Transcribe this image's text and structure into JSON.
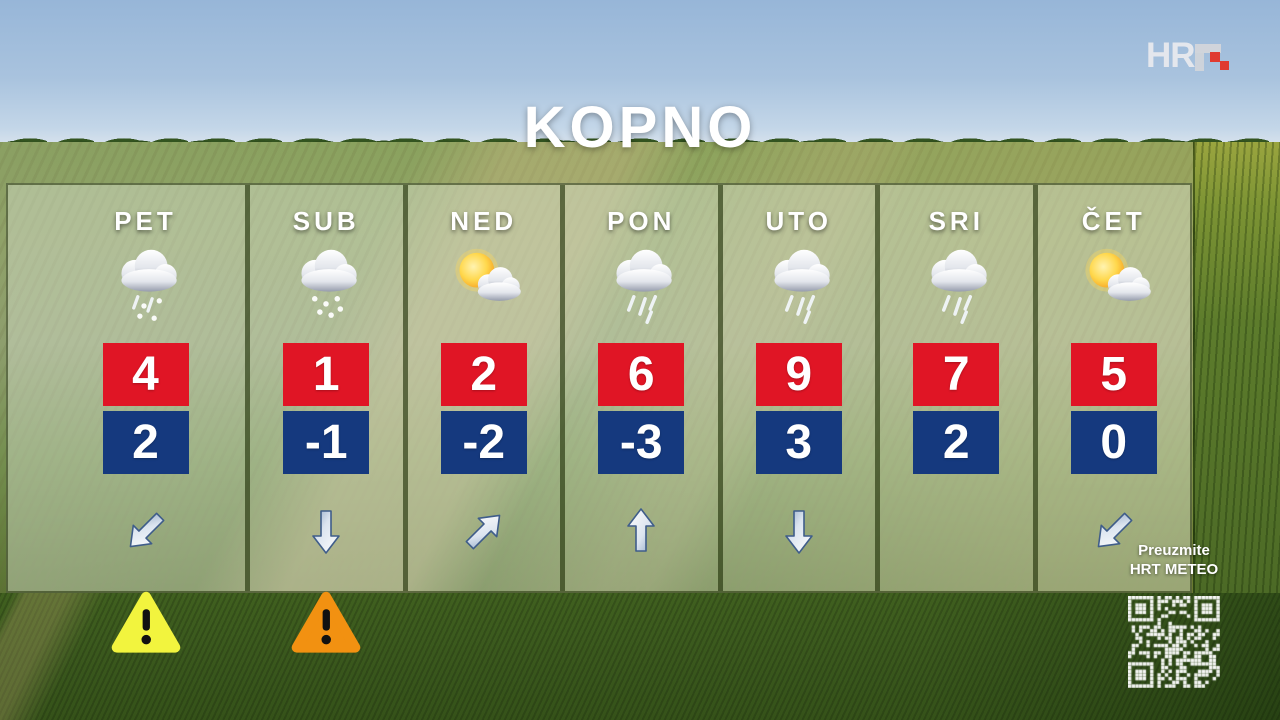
{
  "title": "KOPNO",
  "logo": {
    "text": "HR"
  },
  "days": [
    {
      "label": "PET",
      "icon": "sleet-cloud-icon",
      "high": "4",
      "low": "2",
      "wind": "down-left",
      "warning": "yellow"
    },
    {
      "label": "SUB",
      "icon": "snow-cloud-icon",
      "high": "1",
      "low": "-1",
      "wind": "down",
      "warning": "orange"
    },
    {
      "label": "NED",
      "icon": "sun-cloud-icon",
      "high": "2",
      "low": "-2",
      "wind": "up-right",
      "warning": null
    },
    {
      "label": "PON",
      "icon": "rain-cloud-icon",
      "high": "6",
      "low": "-3",
      "wind": "up",
      "warning": null
    },
    {
      "label": "UTO",
      "icon": "rain-cloud-icon",
      "high": "9",
      "low": "3",
      "wind": "down",
      "warning": null
    },
    {
      "label": "SRI",
      "icon": "rain-cloud-icon",
      "high": "7",
      "low": "2",
      "wind": null,
      "warning": null
    },
    {
      "label": "ČET",
      "icon": "sun-cloud-icon",
      "high": "5",
      "low": "0",
      "wind": "down-left",
      "warning": null
    }
  ],
  "promo": {
    "line1": "Preuzmite",
    "line2": "HRT METEO"
  },
  "colors": {
    "high_bg": "#e01525",
    "low_bg": "#15397e",
    "warning_yellow": "#f2f43e",
    "warning_orange": "#f29111",
    "title_color": "#ffffff"
  }
}
